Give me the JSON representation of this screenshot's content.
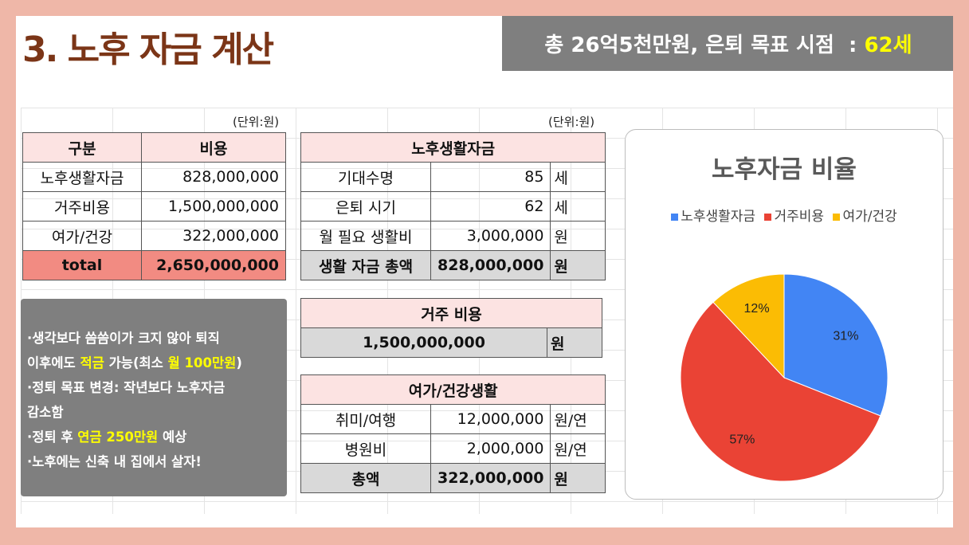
{
  "title": "3. 노후 자금 계산",
  "summary": {
    "prefix": "총 26억5천만원, 은퇴 목표 시점  : ",
    "age": "62세"
  },
  "unit_label": "(단위:원)",
  "cost_table": {
    "headers": [
      "구분",
      "비용"
    ],
    "rows": [
      [
        "노후생활자금",
        "828,000,000"
      ],
      [
        "거주비용",
        "1,500,000,000"
      ],
      [
        "여가/건강",
        "322,000,000"
      ]
    ],
    "total": [
      "total",
      "2,650,000,000"
    ]
  },
  "living": {
    "header": "노후생활자금",
    "rows": [
      [
        "기대수명",
        "85",
        "세"
      ],
      [
        "은퇴 시기",
        "62",
        "세"
      ],
      [
        "월 필요 생활비",
        "3,000,000",
        "원"
      ]
    ],
    "total": [
      "생활 자금 총액",
      "828,000,000",
      "원"
    ]
  },
  "housing": {
    "header": "거주 비용",
    "amount": "1,500,000,000",
    "unit": "원"
  },
  "leisure": {
    "header": "여가/건강생활",
    "rows": [
      [
        "취미/여행",
        "12,000,000",
        "원/연"
      ],
      [
        "병원비",
        "2,000,000",
        "원/연"
      ]
    ],
    "total": [
      "총액",
      "322,000,000",
      "원"
    ]
  },
  "notes": {
    "n1a": "·생각보다 씀씀이가 크지 않아 퇴직",
    "n1b": "이후에도 ",
    "n1c": "적금",
    "n1d": " 가능(최소 ",
    "n1e": "월 100만원",
    "n1f": ")",
    "n2a": "·정퇴 목표 변경: 작년보다 노후자금",
    "n2b": "감소함",
    "n3a": "·정퇴 후 ",
    "n3b": "연금 250만원",
    "n3c": " 예상",
    "n4": "·노후에는 신축 내 집에서 살자!"
  },
  "chart_data": {
    "type": "pie",
    "title": "노후자금 비율",
    "labels": [
      "노후생활자금",
      "거주비용",
      "여가/건강"
    ],
    "values": [
      31,
      57,
      12
    ],
    "value_labels": [
      "31%",
      "57%",
      "12%"
    ],
    "colors": [
      "#4285f4",
      "#ea4335",
      "#fbbc04"
    ],
    "legend": "top"
  }
}
